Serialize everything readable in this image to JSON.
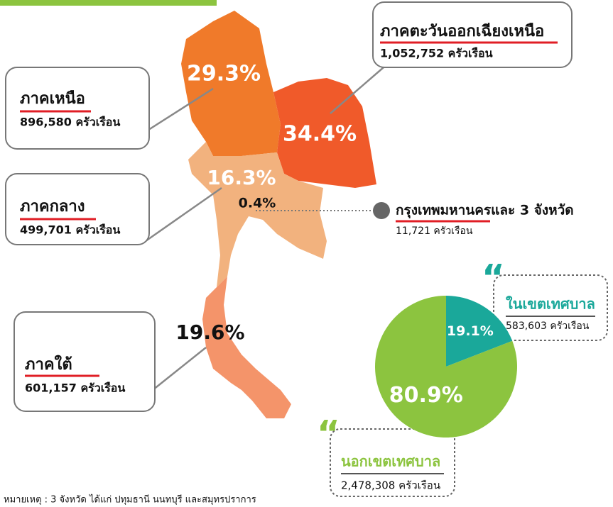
{
  "regions": [
    {
      "name": "ภาคเหนือ",
      "households": "896,580 ครัวเรือน",
      "share": "29.3%"
    },
    {
      "name": "ภาคตะวันออกเฉียงเหนือ",
      "households": "1,052,752 ครัวเรือน",
      "share": "34.4%"
    },
    {
      "name": "ภาคกลาง",
      "households": "499,701 ครัวเรือน",
      "share": "16.3%"
    },
    {
      "name": "ภาคใต้",
      "households": "601,157 ครัวเรือน",
      "share": "19.6%"
    }
  ],
  "bangkok": {
    "name": "กรุงเทพมหานครและ 3 จังหวัด",
    "households": "11,721 ครัวเรือน",
    "share": "0.4%"
  },
  "chart_data": {
    "type": "pie",
    "categories": [
      "ในเขตเทศบาล",
      "นอกเขตเทศบาล"
    ],
    "households": [
      "583,603 ครัวเรือน",
      "2,478,308 ครัวเรือน"
    ],
    "values": [
      19.1,
      80.9
    ],
    "value_labels": [
      "19.1%",
      "80.9%"
    ],
    "colors": [
      "#1aa89a",
      "#8cc43f"
    ]
  },
  "footnote": "หมายเหตุ : 3 จังหวัด ได้แก่ ปทุมธานี นนทบุรี และสมุทรปราการ"
}
